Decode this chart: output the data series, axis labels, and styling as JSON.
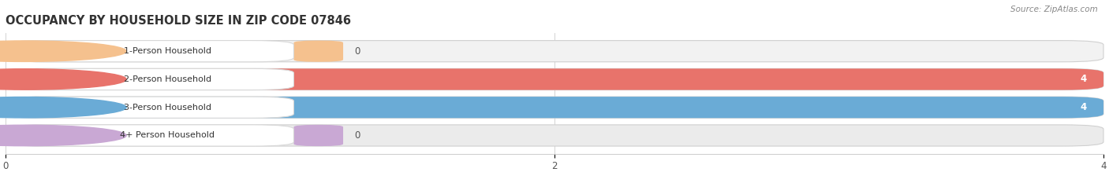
{
  "title": "OCCUPANCY BY HOUSEHOLD SIZE IN ZIP CODE 07846",
  "source": "Source: ZipAtlas.com",
  "categories": [
    "1-Person Household",
    "2-Person Household",
    "3-Person Household",
    "4+ Person Household"
  ],
  "values": [
    0,
    4,
    4,
    0
  ],
  "bar_colors": [
    "#f5c18e",
    "#e8736b",
    "#6aabd6",
    "#c9a8d4"
  ],
  "xlim": [
    0,
    4
  ],
  "xticks": [
    0,
    2,
    4
  ],
  "figsize": [
    14.06,
    2.33
  ],
  "dpi": 100,
  "bg_color": "#ffffff",
  "row_bg": "#f0f0f0",
  "row_bg_alt": "#e8e8e8"
}
